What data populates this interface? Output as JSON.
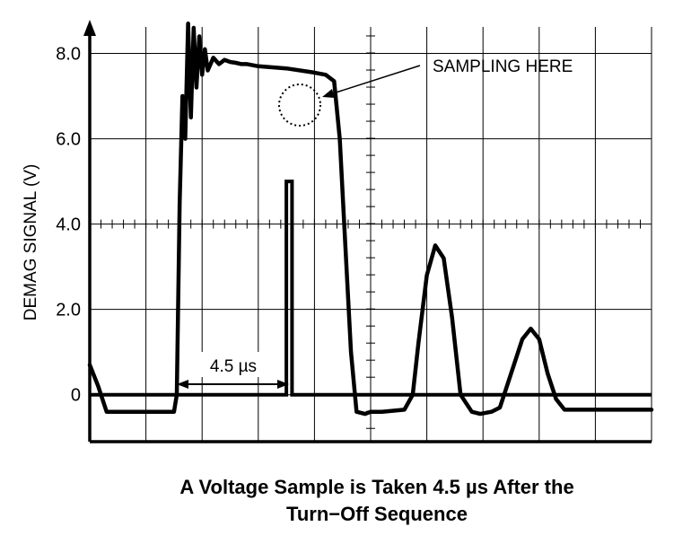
{
  "chart_data": {
    "type": "line",
    "title": "",
    "caption": {
      "line1": "A Voltage Sample is Taken 4.5 µs After the",
      "line2": "Turn−Off Sequence"
    },
    "xlabel": "",
    "ylabel": "DEMAG SIGNAL (V)",
    "yticks": [
      "8.0",
      "6.0",
      "4.0",
      "2.0",
      "0"
    ],
    "ylim": [
      -1.1,
      9.0
    ],
    "xlim": [
      0,
      10
    ],
    "grid": true,
    "annotations": {
      "sampling": "SAMPLING HERE",
      "delay": "4.5 µs"
    },
    "series": [
      {
        "x": [
          0.0,
          0.15,
          0.3,
          1.5,
          1.55,
          1.6,
          1.65,
          1.7,
          1.75,
          1.8,
          1.85,
          1.9,
          1.95,
          2.0,
          2.05,
          2.1,
          2.2,
          2.3,
          2.4,
          2.5,
          2.6,
          2.7,
          2.8,
          3.0,
          3.5,
          4.0,
          4.2,
          4.35,
          4.45,
          4.55,
          4.65,
          4.75,
          4.9,
          5.0,
          5.2,
          5.6,
          5.75,
          5.85,
          6.0,
          6.15,
          6.3,
          6.45,
          6.6,
          6.8,
          6.95,
          7.15,
          7.3,
          7.45,
          7.7,
          7.85,
          8.0,
          8.15,
          8.3,
          8.45,
          8.7,
          8.85,
          9.0,
          9.3,
          10.0
        ],
        "y": [
          0.7,
          0.2,
          -0.4,
          -0.4,
          0.0,
          4.5,
          7.0,
          6.0,
          8.7,
          6.5,
          8.6,
          7.2,
          8.4,
          7.5,
          8.1,
          7.6,
          7.9,
          7.75,
          7.85,
          7.8,
          7.78,
          7.75,
          7.75,
          7.7,
          7.65,
          7.55,
          7.5,
          7.35,
          6.0,
          3.5,
          1.0,
          -0.4,
          -0.45,
          -0.4,
          -0.4,
          -0.35,
          0.0,
          1.2,
          2.8,
          3.5,
          3.2,
          1.8,
          0.0,
          -0.4,
          -0.45,
          -0.4,
          -0.3,
          0.3,
          1.3,
          1.55,
          1.3,
          0.5,
          -0.1,
          -0.35,
          -0.35,
          -0.35,
          -0.35,
          -0.35,
          -0.35
        ]
      },
      {
        "x": [
          0.0,
          3.5,
          3.5,
          3.6,
          3.6,
          10.0
        ],
        "y": [
          0.0,
          0.0,
          5.0,
          5.0,
          0.0,
          0.0
        ]
      }
    ]
  }
}
